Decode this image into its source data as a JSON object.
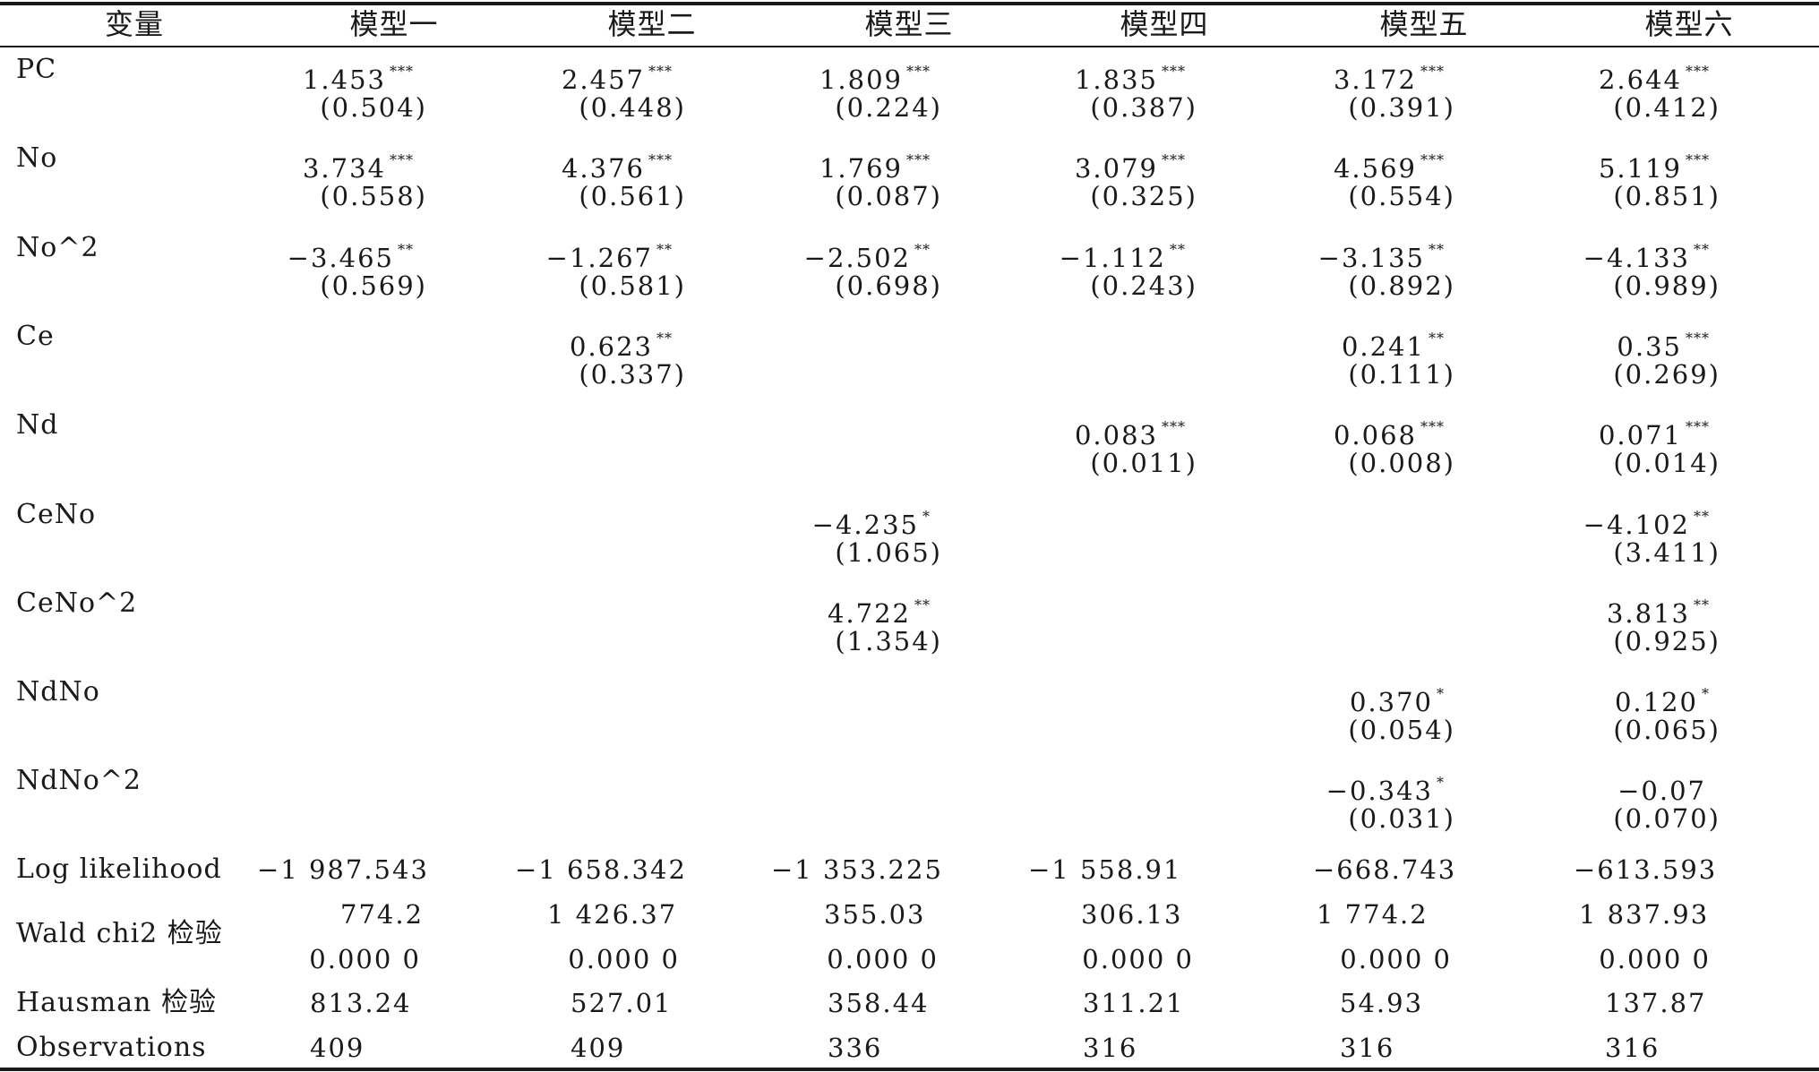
{
  "table": {
    "header": {
      "variable": "变量",
      "models": [
        "模型一",
        "模型二",
        "模型三",
        "模型四",
        "模型五",
        "模型六"
      ]
    },
    "rows": [
      {
        "label": "PC",
        "coef": [
          {
            "v": "1.453",
            "s": "***"
          },
          {
            "v": "2.457",
            "s": "***"
          },
          {
            "v": "1.809",
            "s": "***"
          },
          {
            "v": "1.835",
            "s": "***"
          },
          {
            "v": "3.172",
            "s": "***"
          },
          {
            "v": "2.644",
            "s": "***"
          }
        ],
        "se": [
          "(0.504)",
          "(0.448)",
          "(0.224)",
          "(0.387)",
          "(0.391)",
          "(0.412)"
        ]
      },
      {
        "label": "No",
        "coef": [
          {
            "v": "3.734",
            "s": "***"
          },
          {
            "v": "4.376",
            "s": "***"
          },
          {
            "v": "1.769",
            "s": "***"
          },
          {
            "v": "3.079",
            "s": "***"
          },
          {
            "v": "4.569",
            "s": "***"
          },
          {
            "v": "5.119",
            "s": "***"
          }
        ],
        "se": [
          "(0.558)",
          "(0.561)",
          "(0.087)",
          "(0.325)",
          "(0.554)",
          "(0.851)"
        ]
      },
      {
        "label": "No^2",
        "coef": [
          {
            "v": "−3.465",
            "s": "**"
          },
          {
            "v": "−1.267",
            "s": "**"
          },
          {
            "v": "−2.502",
            "s": "**"
          },
          {
            "v": "−1.112",
            "s": "**"
          },
          {
            "v": "−3.135",
            "s": "**"
          },
          {
            "v": "−4.133",
            "s": "**"
          }
        ],
        "se": [
          "(0.569)",
          "(0.581)",
          "(0.698)",
          "(0.243)",
          "(0.892)",
          "(0.989)"
        ]
      },
      {
        "label": "Ce",
        "coef": [
          {
            "v": "",
            "s": ""
          },
          {
            "v": "0.623",
            "s": "**"
          },
          {
            "v": "",
            "s": ""
          },
          {
            "v": "",
            "s": ""
          },
          {
            "v": "0.241",
            "s": "**"
          },
          {
            "v": "0.35",
            "s": "***"
          }
        ],
        "se": [
          "",
          "(0.337)",
          "",
          "",
          "(0.111)",
          "(0.269)"
        ]
      },
      {
        "label": "Nd",
        "coef": [
          {
            "v": "",
            "s": ""
          },
          {
            "v": "",
            "s": ""
          },
          {
            "v": "",
            "s": ""
          },
          {
            "v": "0.083",
            "s": "***"
          },
          {
            "v": "0.068",
            "s": "***"
          },
          {
            "v": "0.071",
            "s": "***"
          }
        ],
        "se": [
          "",
          "",
          "",
          "(0.011)",
          "(0.008)",
          "(0.014)"
        ]
      },
      {
        "label": "CeNo",
        "coef": [
          {
            "v": "",
            "s": ""
          },
          {
            "v": "",
            "s": ""
          },
          {
            "v": "−4.235",
            "s": "*"
          },
          {
            "v": "",
            "s": ""
          },
          {
            "v": "",
            "s": ""
          },
          {
            "v": "−4.102",
            "s": "**"
          }
        ],
        "se": [
          "",
          "",
          "(1.065)",
          "",
          "",
          "(3.411)"
        ]
      },
      {
        "label": "CeNo^2",
        "coef": [
          {
            "v": "",
            "s": ""
          },
          {
            "v": "",
            "s": ""
          },
          {
            "v": "4.722",
            "s": "**"
          },
          {
            "v": "",
            "s": ""
          },
          {
            "v": "",
            "s": ""
          },
          {
            "v": "3.813",
            "s": "**"
          }
        ],
        "se": [
          "",
          "",
          "(1.354)",
          "",
          "",
          "(0.925)"
        ]
      },
      {
        "label": "NdNo",
        "coef": [
          {
            "v": "",
            "s": ""
          },
          {
            "v": "",
            "s": ""
          },
          {
            "v": "",
            "s": ""
          },
          {
            "v": "",
            "s": ""
          },
          {
            "v": "0.370",
            "s": "*"
          },
          {
            "v": "0.120",
            "s": "*"
          }
        ],
        "se": [
          "",
          "",
          "",
          "",
          "(0.054)",
          "(0.065)"
        ]
      },
      {
        "label": "NdNo^2",
        "coef": [
          {
            "v": "",
            "s": ""
          },
          {
            "v": "",
            "s": ""
          },
          {
            "v": "",
            "s": ""
          },
          {
            "v": "",
            "s": ""
          },
          {
            "v": "−0.343",
            "s": "*"
          },
          {
            "v": "−0.07",
            "s": ""
          }
        ],
        "se": [
          "",
          "",
          "",
          "",
          "(0.031)",
          "(0.070)"
        ]
      }
    ],
    "stats": {
      "log_likelihood": {
        "label": "Log likelihood",
        "values": [
          "−1 987.543",
          "−1 658.342",
          "−1 353.225",
          "−1 558.91",
          "−668.743",
          "−613.593"
        ]
      },
      "wald": {
        "label": "Wald chi2 检验",
        "values": [
          "774.2",
          "1 426.37",
          "355.03",
          "306.13",
          "1 774.2",
          "1 837.93"
        ],
        "p_values": [
          "0.000 0",
          "0.000 0",
          "0.000 0",
          "0.000 0",
          "0.000 0",
          "0.000 0"
        ]
      },
      "hausman": {
        "label": "Hausman 检验",
        "values": [
          "813.24",
          "527.01",
          "358.44",
          "311.21",
          "54.93",
          "137.87"
        ]
      },
      "observations": {
        "label": "Observations",
        "values": [
          "409",
          "409",
          "336",
          "316",
          "316",
          "316"
        ]
      }
    }
  }
}
